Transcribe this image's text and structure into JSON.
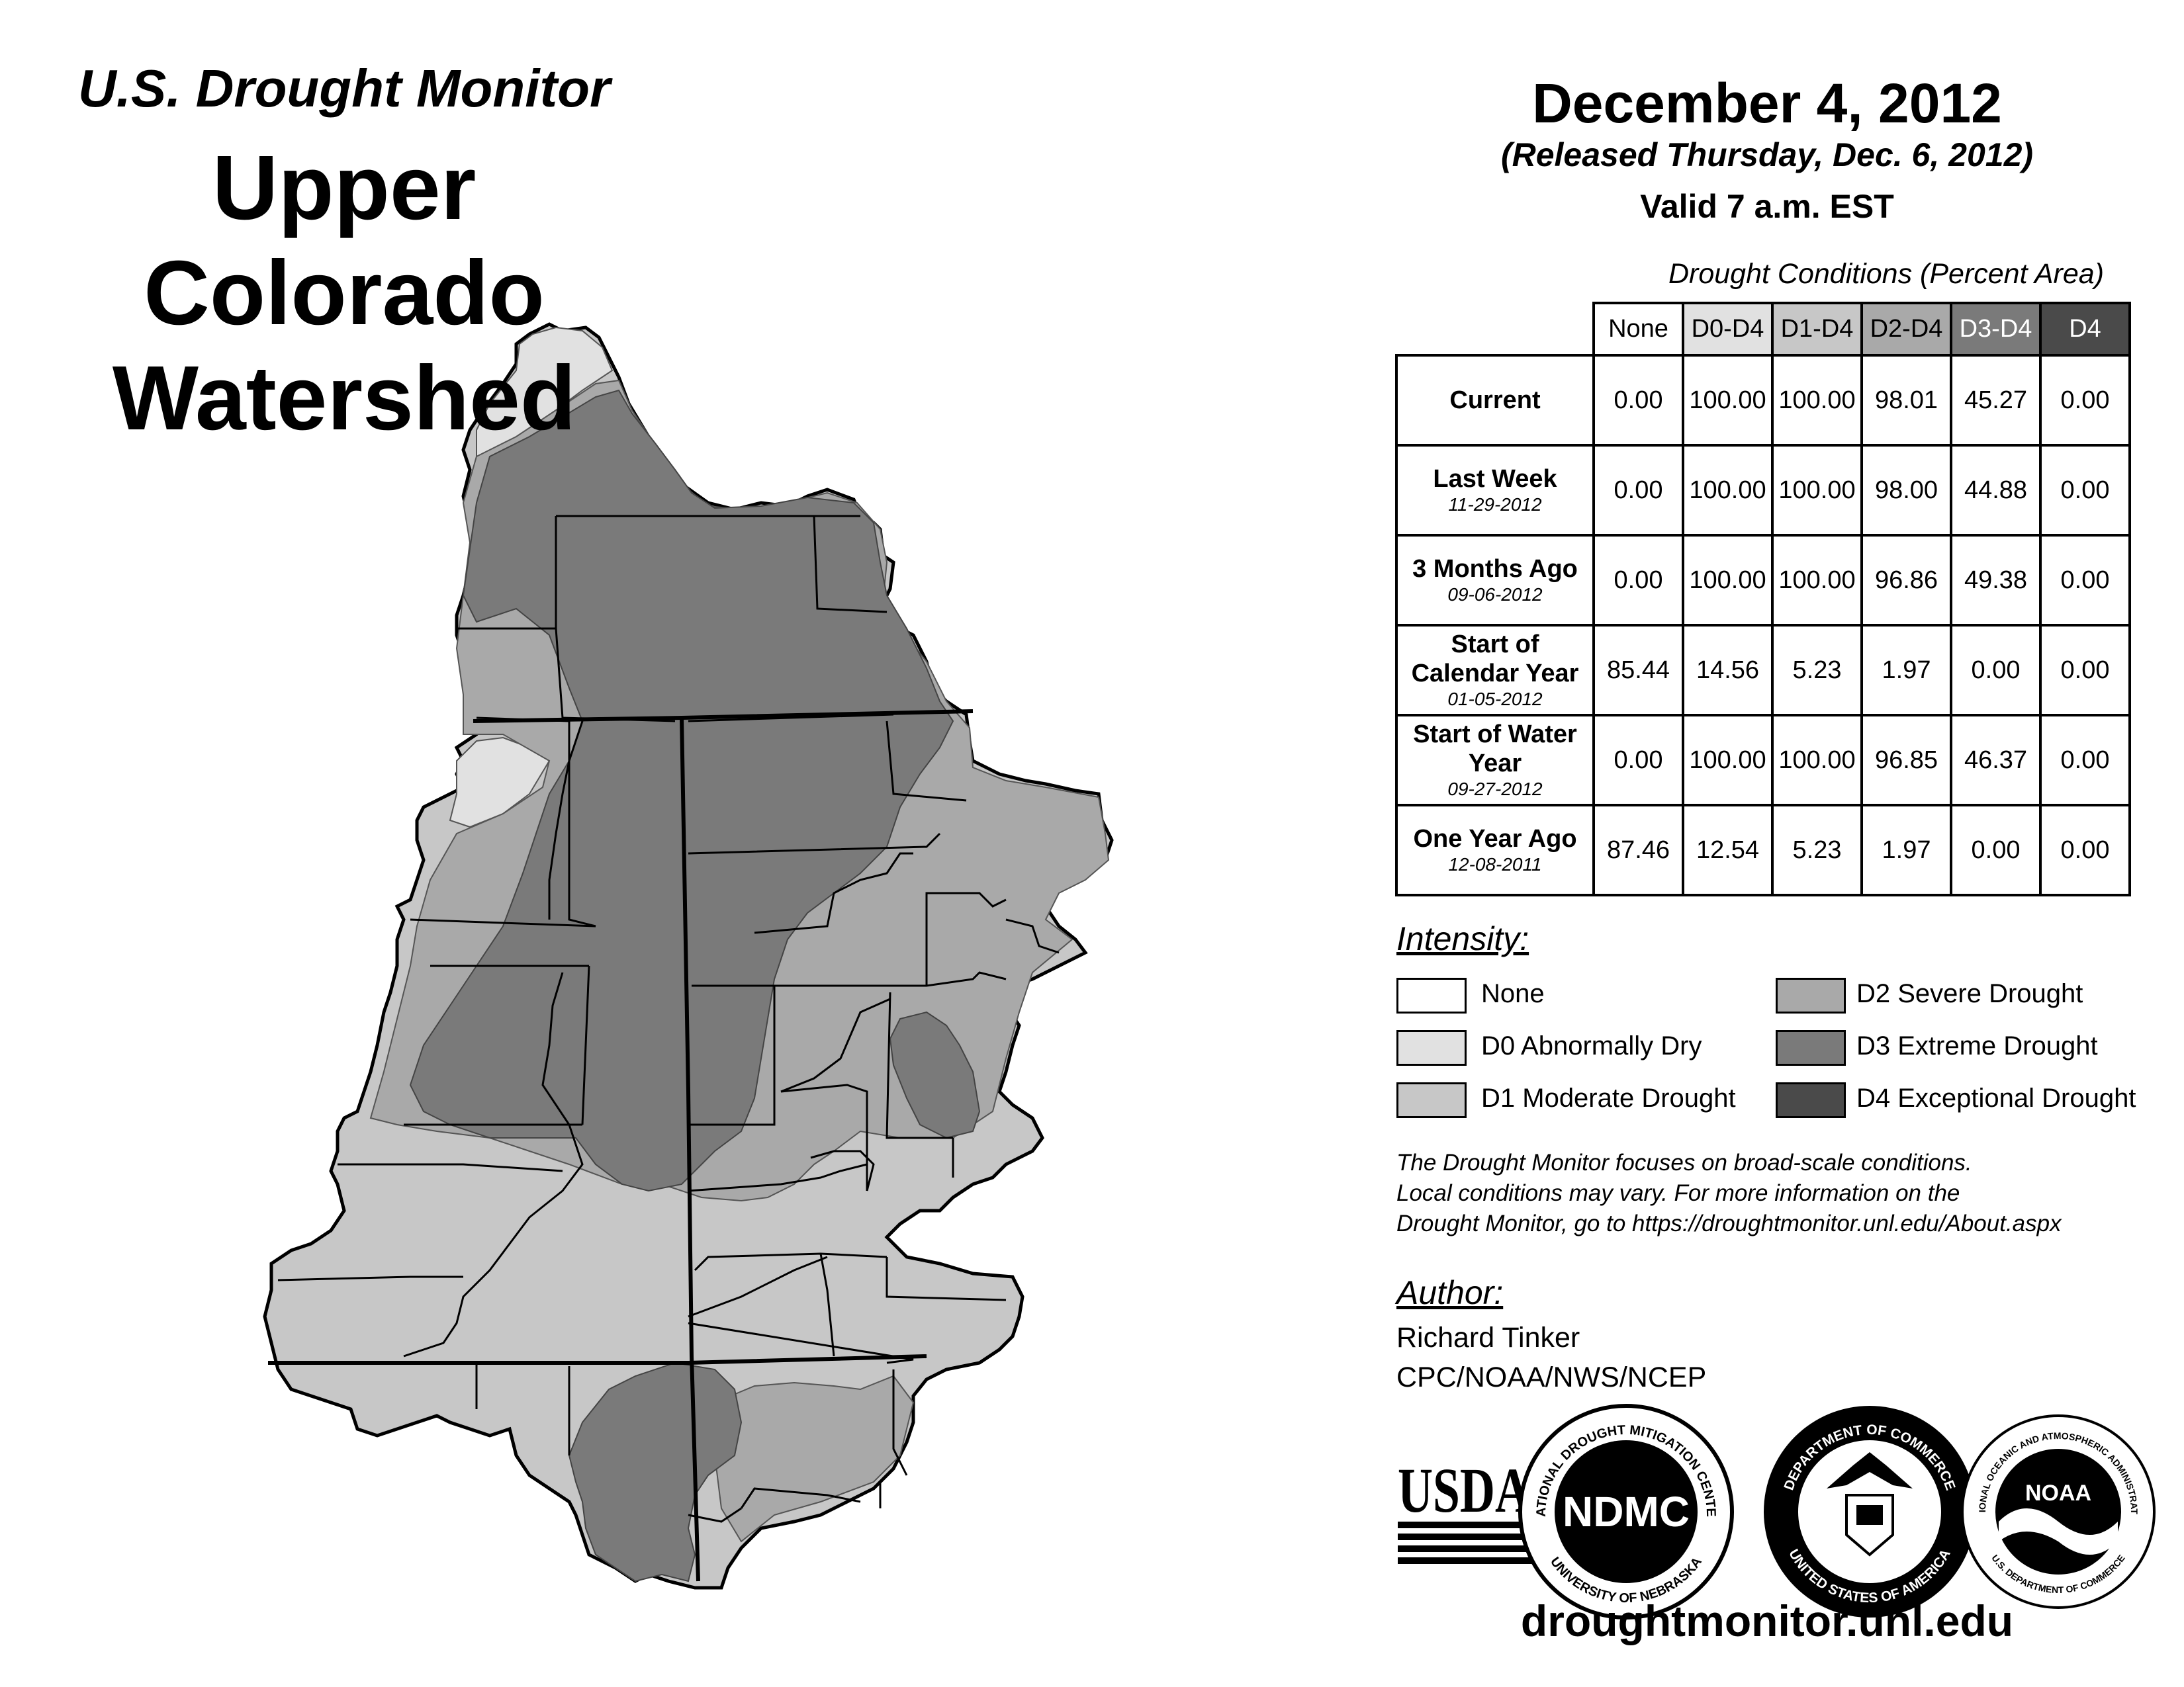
{
  "header": {
    "title_small": "U.S. Drought Monitor",
    "title_main": "Upper Colorado Watershed",
    "date": "December 4, 2012",
    "released": "(Released Thursday, Dec. 6, 2012)",
    "valid": "Valid 7 a.m. EST"
  },
  "table": {
    "caption": "Drought Conditions (Percent Area)",
    "columns": [
      "None",
      "D0-D4",
      "D1-D4",
      "D2-D4",
      "D3-D4",
      "D4"
    ],
    "rows": [
      {
        "label": "Current",
        "date": "",
        "values": [
          "0.00",
          "100.00",
          "100.00",
          "98.01",
          "45.27",
          "0.00"
        ]
      },
      {
        "label": "Last Week",
        "date": "11-29-2012",
        "values": [
          "0.00",
          "100.00",
          "100.00",
          "98.00",
          "44.88",
          "0.00"
        ]
      },
      {
        "label": "3 Months Ago",
        "date": "09-06-2012",
        "values": [
          "0.00",
          "100.00",
          "100.00",
          "96.86",
          "49.38",
          "0.00"
        ]
      },
      {
        "label": "Start of Calendar Year",
        "date": "01-05-2012",
        "values": [
          "85.44",
          "14.56",
          "5.23",
          "1.97",
          "0.00",
          "0.00"
        ]
      },
      {
        "label": "Start of Water Year",
        "date": "09-27-2012",
        "values": [
          "0.00",
          "100.00",
          "100.00",
          "96.85",
          "46.37",
          "0.00"
        ]
      },
      {
        "label": "One Year Ago",
        "date": "12-08-2011",
        "values": [
          "87.46",
          "12.54",
          "5.23",
          "1.97",
          "0.00",
          "0.00"
        ]
      }
    ]
  },
  "legend": {
    "title": "Intensity:",
    "items": [
      {
        "label": "None",
        "color": "#ffffff"
      },
      {
        "label": "D0 Abnormally Dry",
        "color": "#e1e1e1"
      },
      {
        "label": "D1 Moderate Drought",
        "color": "#c7c7c7"
      },
      {
        "label": "D2 Severe Drought",
        "color": "#a9a9a9"
      },
      {
        "label": "D3 Extreme Drought",
        "color": "#7a7a7a"
      },
      {
        "label": "D4 Exceptional Drought",
        "color": "#4a4a4a"
      }
    ]
  },
  "note": [
    "The Drought Monitor focuses on broad-scale conditions.",
    "Local conditions may vary. For more information on the",
    "Drought Monitor, go to https://droughtmonitor.unl.edu/About.aspx"
  ],
  "author": {
    "title": "Author:",
    "name": "Richard Tinker",
    "org": "CPC/NOAA/NWS/NCEP"
  },
  "logos": {
    "usda": "USDA",
    "ndmc": "NDMC",
    "ndmc_ring_top": "NATIONAL DROUGHT MITIGATION CENTER",
    "ndmc_ring_bottom": "UNIVERSITY OF NEBRASKA",
    "doc_ring_top": "DEPARTMENT OF COMMERCE",
    "doc_ring_bottom": "UNITED STATES OF AMERICA",
    "noaa": "NOAA",
    "noaa_ring_top": "NATIONAL OCEANIC AND ATMOSPHERIC ADMINISTRATION",
    "noaa_ring_bottom": "U.S. DEPARTMENT OF COMMERCE"
  },
  "url": "droughtmonitor.unl.edu"
}
